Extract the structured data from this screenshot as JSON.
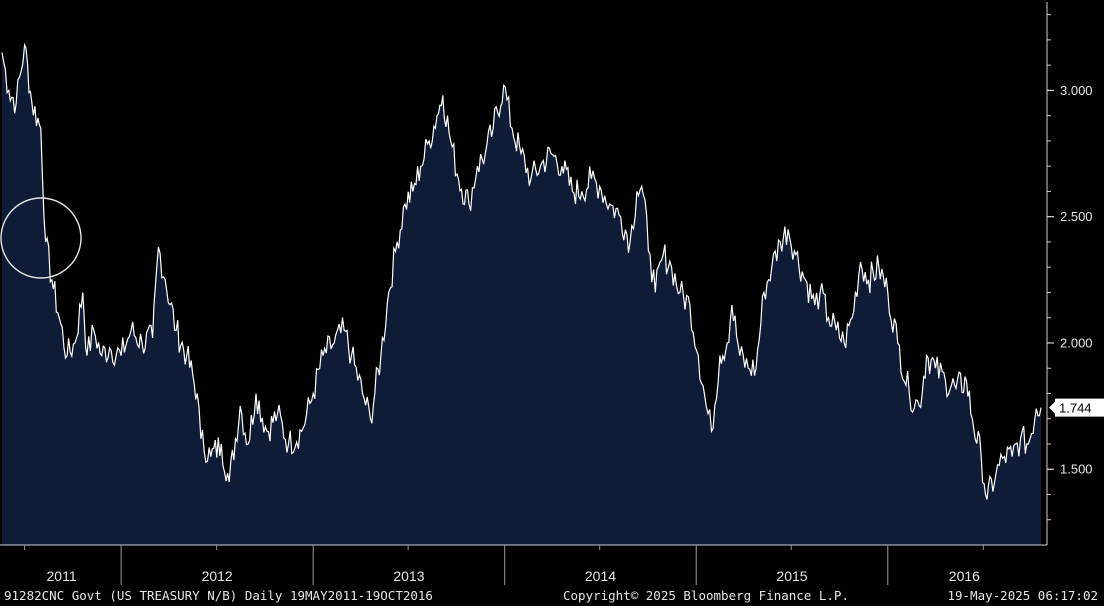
{
  "colors": {
    "background": "#000000",
    "area_fill": "#0e1c38",
    "line": "#ffffff",
    "axis": "#cfcfcf"
  },
  "footer": {
    "left": "91282CNC Govt (US TREASURY N/B)  Daily 19MAY2011-19OCT2016",
    "center": "Copyright© 2025 Bloomberg Finance L.P.",
    "right": "19-May-2025 06:17:02"
  },
  "chart_data": {
    "type": "area",
    "title": "",
    "xlabel": "",
    "ylabel": "",
    "x_tick_labels": [
      "2011",
      "2012",
      "2013",
      "2014",
      "2015",
      "2016"
    ],
    "y_tick_labels": [
      "3.000",
      "2.500",
      "2.000",
      "1.500"
    ],
    "ylim": [
      1.2,
      3.35
    ],
    "xlim": [
      "2011-05-19",
      "2016-10-19"
    ],
    "grid": false,
    "y_axis_position": "right",
    "last_value_label": "1.744",
    "annotation": "circle around 2011-08 drop",
    "series": [
      {
        "x": [
          "2011-05-19",
          "2011-06-01",
          "2011-06-15",
          "2011-07-01",
          "2011-07-15",
          "2011-08-01",
          "2011-08-10",
          "2011-08-22",
          "2011-09-05",
          "2011-09-20",
          "2011-10-05",
          "2011-10-20",
          "2011-10-28",
          "2011-11-10",
          "2011-11-25",
          "2011-12-10",
          "2012-01-01",
          "2012-01-20",
          "2012-02-10",
          "2012-03-01",
          "2012-03-12",
          "2012-03-25",
          "2012-04-15",
          "2012-05-05",
          "2012-05-25",
          "2012-06-01",
          "2012-06-20",
          "2012-07-10",
          "2012-07-25",
          "2012-08-15",
          "2012-08-30",
          "2012-09-14",
          "2012-10-05",
          "2012-10-25",
          "2012-11-15",
          "2012-12-10",
          "2013-01-01",
          "2013-01-20",
          "2013-02-10",
          "2013-03-01",
          "2013-03-15",
          "2013-04-05",
          "2013-04-20",
          "2013-05-10",
          "2013-05-25",
          "2013-06-10",
          "2013-06-25",
          "2013-07-10",
          "2013-07-25",
          "2013-08-10",
          "2013-08-25",
          "2013-09-05",
          "2013-09-20",
          "2013-10-05",
          "2013-10-25",
          "2013-11-10",
          "2013-11-25",
          "2013-12-10",
          "2013-12-30",
          "2014-01-15",
          "2014-02-01",
          "2014-02-20",
          "2014-03-10",
          "2014-03-30",
          "2014-04-20",
          "2014-05-10",
          "2014-05-28",
          "2014-06-15",
          "2014-07-01",
          "2014-07-20",
          "2014-08-10",
          "2014-08-28",
          "2014-09-10",
          "2014-09-19",
          "2014-10-05",
          "2014-10-15",
          "2014-10-30",
          "2014-11-15",
          "2014-12-01",
          "2014-12-20",
          "2015-01-05",
          "2015-01-20",
          "2015-01-30",
          "2015-02-15",
          "2015-03-01",
          "2015-03-10",
          "2015-03-25",
          "2015-04-10",
          "2015-04-25",
          "2015-05-10",
          "2015-05-25",
          "2015-06-10",
          "2015-06-25",
          "2015-07-10",
          "2015-07-28",
          "2015-08-15",
          "2015-08-25",
          "2015-09-10",
          "2015-09-25",
          "2015-10-10",
          "2015-10-25",
          "2015-11-10",
          "2015-11-25",
          "2015-12-15",
          "2016-01-01",
          "2016-01-20",
          "2016-02-11",
          "2016-03-01",
          "2016-03-15",
          "2016-04-01",
          "2016-04-20",
          "2016-05-10",
          "2016-05-30",
          "2016-06-10",
          "2016-06-27",
          "2016-07-08",
          "2016-07-25",
          "2016-08-10",
          "2016-08-25",
          "2016-09-10",
          "2016-09-25",
          "2016-10-10",
          "2016-10-19"
        ],
        "values": [
          3.15,
          3.0,
          2.95,
          3.18,
          2.95,
          2.85,
          2.4,
          2.25,
          2.1,
          1.95,
          2.0,
          2.2,
          1.95,
          2.05,
          1.95,
          1.98,
          1.95,
          2.05,
          2.0,
          2.02,
          2.38,
          2.25,
          2.05,
          1.95,
          1.8,
          1.62,
          1.55,
          1.6,
          1.45,
          1.75,
          1.6,
          1.8,
          1.65,
          1.72,
          1.6,
          1.65,
          1.8,
          1.95,
          2.0,
          2.05,
          1.95,
          1.8,
          1.7,
          1.95,
          2.2,
          2.4,
          2.55,
          2.6,
          2.7,
          2.8,
          2.9,
          2.98,
          2.8,
          2.65,
          2.55,
          2.7,
          2.75,
          2.85,
          3.02,
          2.85,
          2.75,
          2.65,
          2.7,
          2.75,
          2.7,
          2.6,
          2.6,
          2.65,
          2.62,
          2.55,
          2.5,
          2.4,
          2.6,
          2.62,
          2.35,
          2.2,
          2.35,
          2.3,
          2.2,
          2.15,
          1.95,
          1.75,
          1.65,
          1.95,
          2.0,
          2.15,
          1.95,
          1.9,
          1.9,
          2.2,
          2.3,
          2.4,
          2.45,
          2.35,
          2.25,
          2.15,
          2.2,
          2.1,
          2.05,
          2.0,
          2.1,
          2.32,
          2.25,
          2.3,
          2.2,
          2.0,
          1.8,
          1.75,
          1.95,
          1.9,
          1.85,
          1.82,
          1.85,
          1.7,
          1.55,
          1.38,
          1.48,
          1.55,
          1.55,
          1.62,
          1.6,
          1.74,
          1.744
        ]
      }
    ]
  }
}
